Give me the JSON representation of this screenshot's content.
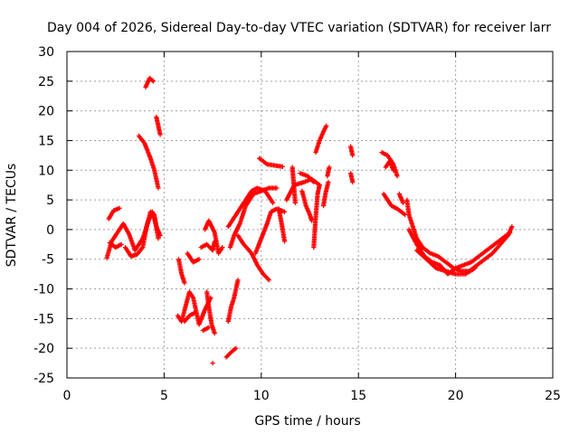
{
  "chart_data": {
    "type": "scatter",
    "title": "Day 004 of 2026, Sidereal Day-to-day VTEC variation (SDTVAR) for receiver larr",
    "xlabel": "GPS time / hours",
    "ylabel": "SDTVAR / TECUs",
    "xlim": [
      0,
      25
    ],
    "ylim": [
      -25,
      30
    ],
    "x_ticks": [
      "0",
      "5",
      "10",
      "15",
      "20",
      "25"
    ],
    "y_ticks": [
      "30",
      "25",
      "20",
      "15",
      "10",
      "5",
      "0",
      "-5",
      "-10",
      "-15",
      "-20",
      "-25"
    ],
    "grid": true,
    "marker": "plus",
    "color": "#ff0000",
    "series": [
      {
        "segments": [
          [
            [
              2.05,
              -4.8
            ],
            [
              2.3,
              -2.0
            ],
            [
              2.6,
              -0.5
            ],
            [
              2.9,
              1.0
            ],
            [
              3.2,
              -0.8
            ],
            [
              3.5,
              -3.5
            ],
            [
              3.9,
              -1.5
            ],
            [
              4.2,
              1.5
            ],
            [
              4.4,
              3.0
            ],
            [
              4.6,
              0.5
            ],
            [
              4.8,
              -1.0
            ]
          ],
          [
            [
              2.15,
              1.8
            ],
            [
              2.4,
              3.2
            ],
            [
              2.7,
              3.6
            ]
          ],
          [
            [
              2.2,
              -2.2
            ],
            [
              2.5,
              -3.0
            ],
            [
              2.8,
              -2.5
            ]
          ],
          [
            [
              3.0,
              -3.0
            ],
            [
              3.3,
              -4.5
            ],
            [
              3.6,
              -4.2
            ],
            [
              3.9,
              -3.0
            ],
            [
              4.1,
              0.5
            ],
            [
              4.3,
              3.0
            ],
            [
              4.5,
              2.5
            ],
            [
              4.7,
              -1.5
            ]
          ],
          [
            [
              4.05,
              24.0
            ],
            [
              4.25,
              25.5
            ],
            [
              4.45,
              25.0
            ]
          ],
          [
            [
              4.6,
              19.0
            ],
            [
              4.7,
              17.5
            ],
            [
              4.8,
              16.0
            ]
          ],
          [
            [
              3.7,
              15.8
            ],
            [
              4.0,
              14.5
            ],
            [
              4.3,
              12.0
            ],
            [
              4.5,
              10.0
            ],
            [
              4.7,
              7.0
            ]
          ],
          [
            [
              5.75,
              -5.0
            ],
            [
              5.9,
              -7.5
            ],
            [
              6.05,
              -9.0
            ]
          ],
          [
            [
              5.7,
              -14.5
            ],
            [
              5.9,
              -15.5
            ],
            [
              6.1,
              -13.0
            ],
            [
              6.3,
              -10.5
            ],
            [
              6.5,
              -11.5
            ],
            [
              6.8,
              -16.0
            ],
            [
              7.1,
              -13.5
            ],
            [
              7.4,
              -11.5
            ]
          ],
          [
            [
              6.2,
              -4.0
            ],
            [
              6.5,
              -5.5
            ],
            [
              6.8,
              -5.0
            ]
          ],
          [
            [
              6.05,
              -15.5
            ],
            [
              6.3,
              -14.5
            ],
            [
              6.6,
              -14.0
            ]
          ],
          [
            [
              7.2,
              -10.5
            ],
            [
              7.3,
              -13.0
            ],
            [
              7.45,
              -16.0
            ],
            [
              7.6,
              -17.5
            ]
          ],
          [
            [
              6.9,
              -3.0
            ],
            [
              7.2,
              -2.5
            ],
            [
              7.5,
              -3.5
            ],
            [
              7.6,
              -2.0
            ]
          ],
          [
            [
              7.0,
              -17.0
            ],
            [
              7.3,
              -16.5
            ]
          ],
          [
            [
              7.1,
              0.0
            ],
            [
              7.3,
              1.5
            ],
            [
              7.6,
              -0.5
            ],
            [
              7.8,
              -4.0
            ],
            [
              8.0,
              -3.0
            ]
          ],
          [
            [
              7.5,
              -22.5
            ]
          ],
          [
            [
              8.2,
              -21.5
            ],
            [
              8.5,
              -20.5
            ],
            [
              8.7,
              -20.0
            ]
          ],
          [
            [
              8.3,
              -15.5
            ],
            [
              8.45,
              -13.0
            ],
            [
              8.6,
              -11.5
            ],
            [
              8.8,
              -8.5
            ]
          ],
          [
            [
              8.4,
              -3.0
            ],
            [
              8.6,
              -1.0
            ],
            [
              8.9,
              1.0
            ],
            [
              9.2,
              4.0
            ],
            [
              9.6,
              6.0
            ],
            [
              10.0,
              6.5
            ],
            [
              10.4,
              7.0
            ],
            [
              10.8,
              7.0
            ]
          ],
          [
            [
              8.3,
              0.5
            ],
            [
              8.6,
              2.0
            ],
            [
              8.9,
              3.5
            ],
            [
              9.2,
              5.0
            ],
            [
              9.5,
              6.5
            ],
            [
              9.8,
              7.0
            ],
            [
              10.2,
              6.5
            ],
            [
              10.6,
              4.5
            ]
          ],
          [
            [
              8.8,
              -1.0
            ],
            [
              9.1,
              -2.5
            ],
            [
              9.5,
              -4.0
            ],
            [
              9.8,
              -6.0
            ],
            [
              10.1,
              -7.5
            ],
            [
              10.4,
              -8.5
            ]
          ],
          [
            [
              9.7,
              -4.0
            ],
            [
              10.0,
              -1.5
            ],
            [
              10.3,
              1.0
            ],
            [
              10.5,
              3.0
            ],
            [
              10.8,
              3.5
            ],
            [
              11.2,
              3.0
            ]
          ],
          [
            [
              10.9,
              3.5
            ],
            [
              11.05,
              1.0
            ],
            [
              11.2,
              -2.0
            ]
          ],
          [
            [
              9.9,
              12.0
            ],
            [
              10.3,
              11.0
            ],
            [
              10.7,
              10.8
            ],
            [
              11.1,
              10.6
            ]
          ],
          [
            [
              11.6,
              10.5
            ],
            [
              11.65,
              8.5
            ],
            [
              11.7,
              6.5
            ],
            [
              11.75,
              4.5
            ]
          ],
          [
            [
              11.3,
              5.0
            ],
            [
              11.7,
              7.5
            ],
            [
              12.2,
              8.0
            ],
            [
              12.6,
              8.5
            ],
            [
              13.0,
              7.5
            ]
          ],
          [
            [
              12.0,
              9.5
            ],
            [
              12.4,
              9.0
            ],
            [
              12.7,
              8.0
            ]
          ],
          [
            [
              12.1,
              6.5
            ],
            [
              12.3,
              4.0
            ],
            [
              12.5,
              2.5
            ],
            [
              12.6,
              1.5
            ]
          ],
          [
            [
              12.7,
              -3.0
            ],
            [
              12.8,
              2.0
            ],
            [
              12.9,
              6.0
            ],
            [
              13.0,
              7.5
            ]
          ],
          [
            [
              12.8,
              13.0
            ],
            [
              13.0,
              15.0
            ],
            [
              13.2,
              16.5
            ],
            [
              13.35,
              17.5
            ]
          ],
          [
            [
              13.2,
              4.0
            ],
            [
              13.3,
              6.0
            ],
            [
              13.45,
              8.0
            ]
          ],
          [
            [
              13.4,
              9.0
            ],
            [
              13.5,
              10.5
            ]
          ],
          [
            [
              14.6,
              14.0
            ],
            [
              14.7,
              12.5
            ]
          ],
          [
            [
              14.6,
              9.5
            ],
            [
              14.7,
              8.0
            ]
          ],
          [
            [
              16.2,
              13.0
            ],
            [
              16.5,
              12.5
            ],
            [
              16.8,
              11.0
            ],
            [
              17.0,
              9.0
            ]
          ],
          [
            [
              16.4,
              10.5
            ],
            [
              16.6,
              11.5
            ],
            [
              16.8,
              10.0
            ]
          ],
          [
            [
              17.1,
              6.0
            ],
            [
              17.3,
              4.5
            ]
          ],
          [
            [
              16.3,
              6.0
            ],
            [
              16.7,
              4.0
            ],
            [
              17.0,
              3.5
            ],
            [
              17.4,
              2.5
            ]
          ],
          [
            [
              17.5,
              5.0
            ],
            [
              17.6,
              2.5
            ],
            [
              17.8,
              0.5
            ],
            [
              18.0,
              -1.5
            ],
            [
              18.3,
              -3.0
            ],
            [
              18.7,
              -4.0
            ],
            [
              19.1,
              -4.5
            ],
            [
              19.5,
              -5.5
            ],
            [
              19.9,
              -6.5
            ],
            [
              20.3,
              -7.0
            ],
            [
              20.7,
              -7.0
            ],
            [
              21.1,
              -6.0
            ],
            [
              21.5,
              -5.0
            ],
            [
              21.9,
              -4.0
            ],
            [
              22.3,
              -2.5
            ],
            [
              22.7,
              -1.0
            ],
            [
              22.9,
              0.5
            ]
          ],
          [
            [
              17.6,
              0.0
            ],
            [
              18.0,
              -2.5
            ],
            [
              18.4,
              -4.5
            ],
            [
              18.8,
              -5.5
            ],
            [
              19.2,
              -6.0
            ],
            [
              19.6,
              -7.5
            ],
            [
              20.0,
              -6.5
            ],
            [
              20.4,
              -6.0
            ],
            [
              20.8,
              -5.5
            ],
            [
              21.2,
              -4.5
            ],
            [
              21.6,
              -3.5
            ],
            [
              22.0,
              -2.5
            ],
            [
              22.4,
              -1.5
            ],
            [
              22.8,
              -0.5
            ]
          ],
          [
            [
              18.0,
              -3.5
            ],
            [
              18.5,
              -5.0
            ],
            [
              19.0,
              -6.5
            ],
            [
              19.5,
              -7.0
            ],
            [
              20.0,
              -7.5
            ],
            [
              20.5,
              -7.5
            ],
            [
              21.0,
              -6.5
            ]
          ]
        ]
      }
    ]
  }
}
